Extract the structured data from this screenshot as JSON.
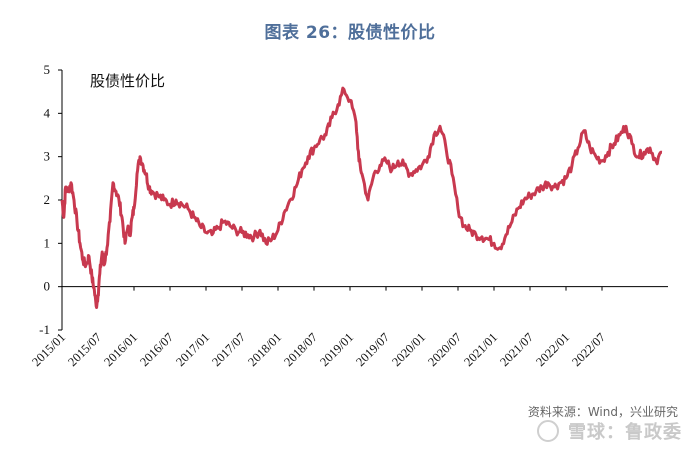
{
  "header": {
    "title": "图表 26：股债性价比"
  },
  "footer": {
    "source": "资料来源：Wind，兴业研究",
    "watermark": "雪球：鲁政委"
  },
  "chart_data": {
    "type": "line",
    "title": "图表 26：股债性价比",
    "series_label": "股债性价比",
    "color": "#c8394f",
    "ylim": [
      -1,
      5
    ],
    "yticks": [
      -1,
      0,
      1,
      2,
      3,
      4,
      5
    ],
    "xlim": [
      0,
      101
    ],
    "xticks": [
      {
        "label": "2015/01",
        "pos": 0
      },
      {
        "label": "2015/07",
        "pos": 6
      },
      {
        "label": "2016/01",
        "pos": 12
      },
      {
        "label": "2016/07",
        "pos": 18
      },
      {
        "label": "2017/01",
        "pos": 24
      },
      {
        "label": "2017/07",
        "pos": 30
      },
      {
        "label": "2018/01",
        "pos": 36
      },
      {
        "label": "2018/07",
        "pos": 42
      },
      {
        "label": "2019/01",
        "pos": 48
      },
      {
        "label": "2019/07",
        "pos": 54
      },
      {
        "label": "2020/01",
        "pos": 60
      },
      {
        "label": "2020/07",
        "pos": 66
      },
      {
        "label": "2021/01",
        "pos": 72
      },
      {
        "label": "2021/07",
        "pos": 78
      },
      {
        "label": "2022/01",
        "pos": 84
      },
      {
        "label": "2022/07",
        "pos": 90
      }
    ],
    "series": [
      {
        "name": "股债性价比",
        "points": [
          [
            0,
            2.0
          ],
          [
            0.3,
            1.6
          ],
          [
            0.6,
            2.3
          ],
          [
            1,
            2.2
          ],
          [
            1.5,
            2.4
          ],
          [
            2,
            2.0
          ],
          [
            2.5,
            1.5
          ],
          [
            3,
            1.0
          ],
          [
            3.5,
            0.6
          ],
          [
            4,
            0.5
          ],
          [
            4.5,
            0.7
          ],
          [
            5,
            0.2
          ],
          [
            5.3,
            0.0
          ],
          [
            5.7,
            -0.45
          ],
          [
            6,
            -0.2
          ],
          [
            6.3,
            0.3
          ],
          [
            6.7,
            0.8
          ],
          [
            7,
            0.5
          ],
          [
            7.5,
            0.9
          ],
          [
            8,
            1.5
          ],
          [
            8.5,
            2.4
          ],
          [
            9,
            2.2
          ],
          [
            9.5,
            2.0
          ],
          [
            10,
            1.6
          ],
          [
            10.5,
            1.0
          ],
          [
            11,
            1.4
          ],
          [
            11.3,
            1.2
          ],
          [
            11.7,
            1.6
          ],
          [
            12,
            1.8
          ],
          [
            12.5,
            2.6
          ],
          [
            13,
            3.0
          ],
          [
            13.5,
            2.8
          ],
          [
            14,
            2.6
          ],
          [
            14.5,
            2.3
          ],
          [
            15,
            2.2
          ],
          [
            16,
            2.1
          ],
          [
            17,
            2.0
          ],
          [
            18,
            1.9
          ],
          [
            19,
            2.0
          ],
          [
            20,
            1.9
          ],
          [
            21,
            1.8
          ],
          [
            22,
            1.6
          ],
          [
            23,
            1.4
          ],
          [
            24,
            1.25
          ],
          [
            25,
            1.2
          ],
          [
            26,
            1.35
          ],
          [
            27,
            1.5
          ],
          [
            28,
            1.4
          ],
          [
            29,
            1.3
          ],
          [
            30,
            1.25
          ],
          [
            31,
            1.2
          ],
          [
            32,
            1.15
          ],
          [
            33,
            1.3
          ],
          [
            34,
            1.0
          ],
          [
            35,
            1.1
          ],
          [
            36,
            1.3
          ],
          [
            37,
            1.7
          ],
          [
            38,
            2.0
          ],
          [
            39,
            2.3
          ],
          [
            40,
            2.7
          ],
          [
            41,
            3.0
          ],
          [
            42,
            3.2
          ],
          [
            43,
            3.4
          ],
          [
            44,
            3.5
          ],
          [
            45,
            3.9
          ],
          [
            46,
            4.2
          ],
          [
            47,
            4.55
          ],
          [
            48,
            4.3
          ],
          [
            49,
            3.8
          ],
          [
            49.5,
            2.9
          ],
          [
            50,
            2.6
          ],
          [
            51,
            2.0
          ],
          [
            52,
            2.6
          ],
          [
            53,
            2.8
          ],
          [
            54,
            2.9
          ],
          [
            55,
            2.7
          ],
          [
            56,
            2.9
          ],
          [
            57,
            2.8
          ],
          [
            58,
            2.6
          ],
          [
            59,
            2.7
          ],
          [
            60,
            2.8
          ],
          [
            61,
            3.0
          ],
          [
            62,
            3.5
          ],
          [
            63,
            3.7
          ],
          [
            64,
            3.2
          ],
          [
            65,
            2.6
          ],
          [
            66,
            1.8
          ],
          [
            67,
            1.4
          ],
          [
            68,
            1.3
          ],
          [
            69,
            1.2
          ],
          [
            70,
            1.15
          ],
          [
            71,
            1.1
          ],
          [
            72,
            1.0
          ],
          [
            73,
            0.9
          ],
          [
            74,
            1.2
          ],
          [
            75,
            1.5
          ],
          [
            76,
            1.8
          ],
          [
            77,
            2.0
          ],
          [
            78,
            2.1
          ],
          [
            79,
            2.2
          ],
          [
            80,
            2.3
          ],
          [
            81,
            2.4
          ],
          [
            82,
            2.3
          ],
          [
            83,
            2.4
          ],
          [
            84,
            2.5
          ],
          [
            85,
            2.8
          ],
          [
            86,
            3.2
          ],
          [
            87,
            3.6
          ],
          [
            88,
            3.2
          ],
          [
            89,
            3.0
          ],
          [
            90,
            2.9
          ],
          [
            91,
            3.1
          ],
          [
            92,
            3.3
          ],
          [
            93,
            3.5
          ],
          [
            94,
            3.7
          ],
          [
            95,
            3.3
          ],
          [
            96,
            3.0
          ],
          [
            97,
            3.1
          ],
          [
            98,
            3.2
          ],
          [
            99,
            2.9
          ],
          [
            100,
            3.1
          ]
        ]
      }
    ]
  }
}
